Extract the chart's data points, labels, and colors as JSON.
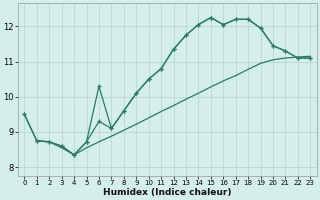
{
  "xlabel": "Humidex (Indice chaleur)",
  "bg_color": "#d4eeeb",
  "grid_color": "#b8d8d4",
  "line_color": "#2a7a6a",
  "xlim": [
    -0.5,
    23.5
  ],
  "ylim": [
    7.75,
    12.65
  ],
  "xticks": [
    0,
    1,
    2,
    3,
    4,
    5,
    6,
    7,
    8,
    9,
    10,
    11,
    12,
    13,
    14,
    15,
    16,
    17,
    18,
    19,
    20,
    21,
    22,
    23
  ],
  "yticks": [
    8,
    9,
    10,
    11,
    12
  ],
  "line1_x": [
    0,
    1,
    2,
    3,
    4,
    5,
    6,
    7,
    8,
    9,
    10,
    11,
    12,
    13,
    14,
    15,
    16,
    17,
    18,
    19,
    20,
    21,
    22,
    23
  ],
  "line1_y": [
    9.5,
    8.75,
    8.72,
    8.6,
    8.35,
    8.72,
    10.3,
    9.1,
    9.6,
    10.1,
    10.5,
    10.8,
    11.35,
    11.75,
    12.05,
    12.25,
    12.05,
    12.2,
    12.2,
    11.95,
    11.45,
    11.3,
    11.1,
    11.1
  ],
  "line2_x": [
    0,
    1,
    2,
    3,
    4,
    5,
    6,
    7,
    8,
    9,
    10,
    11,
    12,
    13,
    14,
    15,
    16,
    17,
    18,
    19,
    20,
    21,
    22,
    23
  ],
  "line2_y": [
    9.5,
    8.75,
    8.72,
    8.6,
    8.35,
    8.72,
    9.3,
    9.1,
    9.6,
    10.1,
    10.5,
    10.8,
    11.35,
    11.75,
    12.05,
    12.25,
    12.05,
    12.2,
    12.2,
    11.95,
    11.45,
    11.3,
    11.1,
    11.1
  ],
  "line3_x": [
    1,
    2,
    3,
    4,
    5,
    6,
    7,
    8,
    9,
    10,
    11,
    12,
    13,
    14,
    15,
    16,
    17,
    18,
    19,
    20,
    21,
    22,
    23
  ],
  "line3_y": [
    8.75,
    8.72,
    8.55,
    8.35,
    8.55,
    8.72,
    8.88,
    9.05,
    9.22,
    9.4,
    9.58,
    9.75,
    9.93,
    10.1,
    10.28,
    10.45,
    10.6,
    10.78,
    10.95,
    11.05,
    11.1,
    11.13,
    11.15
  ]
}
